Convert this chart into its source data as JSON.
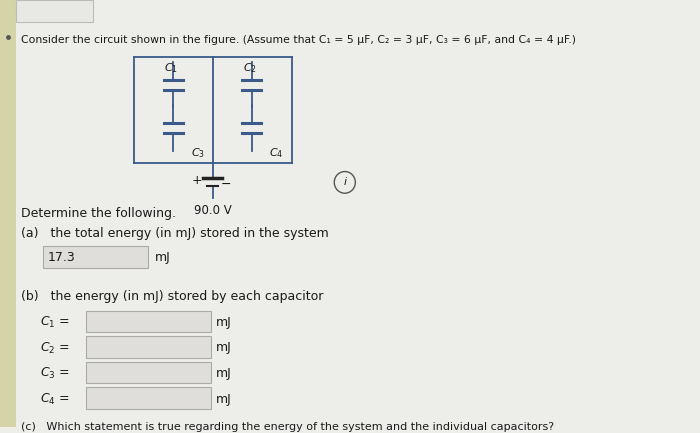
{
  "title": "Consider the circuit shown in the figure. (Assume that C₁ = 5 μF, C₂ = 3 μF, C₃ = 6 μF, and C₄ = 4 μF.)",
  "voltage": "90.0 V",
  "determine_text": "Determine the following.",
  "part_a_label": "(a)   the total energy (in mJ) stored in the system",
  "part_a_answer": "17.3",
  "part_a_unit": "mJ",
  "part_b_label": "(b)   the energy (in mJ) stored by each capacitor",
  "cap_labels": [
    "C_1",
    "C_2",
    "C_3",
    "C_4"
  ],
  "unit": "mJ",
  "bg_color": "#ededea",
  "circuit_bg": "#f5f4f0",
  "text_color": "#1a1a1a",
  "circuit_line_color": "#3a5a8a",
  "input_box_color": "#e0deda",
  "input_box_border": "#aaaaaa",
  "left_strip_color": "#d4d4a8",
  "footer_text": "(c)   Which statement is true regarding the energy of the system and the individual capacitors?",
  "tab_color": "#e8e8e4"
}
